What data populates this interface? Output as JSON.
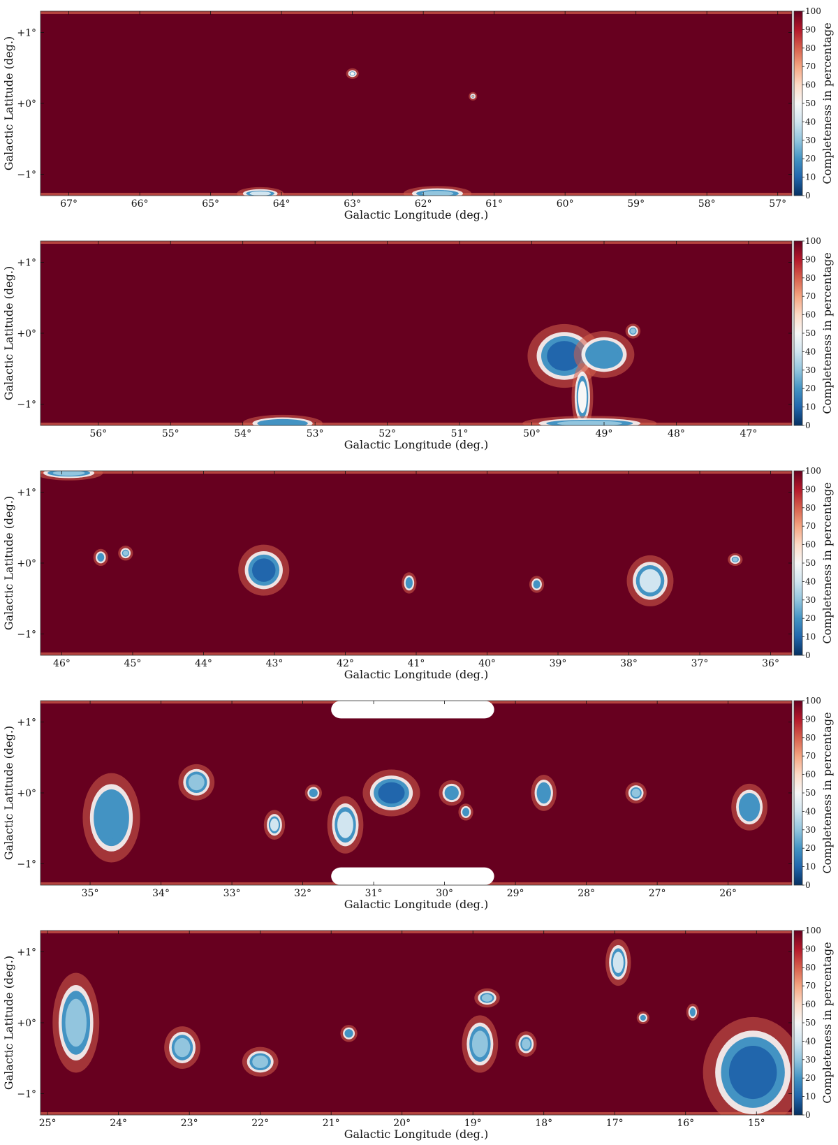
{
  "figure": {
    "colorbar": {
      "label": "Completeness in percentage",
      "ticks": [
        0,
        10,
        20,
        30,
        40,
        50,
        60,
        70,
        80,
        90,
        100
      ],
      "range": [
        0,
        100
      ],
      "colors": [
        "#053061",
        "#2166ac",
        "#4393c3",
        "#92c5de",
        "#d1e5f0",
        "#f7f7f7",
        "#fddbc7",
        "#f4a582",
        "#d6604d",
        "#b2182b",
        "#67001f"
      ]
    },
    "background_color": "#67001f"
  },
  "chart_data": [
    {
      "type": "heatmap",
      "xlabel": "Galactic Longitude (deg.)",
      "ylabel": "Galactic Latitude (deg.)",
      "xlim": [
        67.4,
        56.8
      ],
      "ylim": [
        -1.3,
        1.3
      ],
      "xticks": [
        67,
        66,
        65,
        64,
        63,
        62,
        61,
        60,
        59,
        58,
        57
      ],
      "xtick_labels": [
        "67°",
        "66°",
        "65°",
        "64°",
        "63°",
        "62°",
        "61°",
        "60°",
        "59°",
        "58°",
        "57°"
      ],
      "yticks": [
        1,
        0,
        -1
      ],
      "ytick_labels": [
        "+1°",
        "+0°",
        "−1°"
      ],
      "low_completeness_regions": [
        {
          "l": 63.0,
          "b": 0.42,
          "rl": 0.04,
          "rb": 0.03,
          "value": 50
        },
        {
          "l": 61.3,
          "b": 0.1,
          "rl": 0.02,
          "rb": 0.02,
          "value": 70
        },
        {
          "l": 61.8,
          "b": -1.27,
          "rl": 0.3,
          "rb": 0.05,
          "value": 25
        },
        {
          "l": 64.3,
          "b": -1.27,
          "rl": 0.2,
          "rb": 0.04,
          "value": 40
        }
      ]
    },
    {
      "type": "heatmap",
      "xlabel": "Galactic Longitude (deg.)",
      "ylabel": "Galactic Latitude (deg.)",
      "xlim": [
        56.8,
        46.4
      ],
      "ylim": [
        -1.3,
        1.3
      ],
      "xticks": [
        56,
        55,
        54,
        53,
        52,
        51,
        50,
        49,
        48,
        47
      ],
      "xtick_labels": [
        "56°",
        "55°",
        "54°",
        "53°",
        "52°",
        "51°",
        "50°",
        "49°",
        "48°",
        "47°"
      ],
      "yticks": [
        1,
        0,
        -1
      ],
      "ytick_labels": [
        "+1°",
        "+0°",
        "−1°"
      ],
      "low_completeness_regions": [
        {
          "l": 49.55,
          "b": -0.32,
          "rl": 0.32,
          "rb": 0.28,
          "value": 10
        },
        {
          "l": 49.0,
          "b": -0.3,
          "rl": 0.26,
          "rb": 0.2,
          "value": 15
        },
        {
          "l": 49.3,
          "b": -0.9,
          "rl": 0.08,
          "rb": 0.3,
          "value": 45
        },
        {
          "l": 48.6,
          "b": 0.03,
          "rl": 0.05,
          "rb": 0.05,
          "value": 30
        },
        {
          "l": 53.45,
          "b": -1.27,
          "rl": 0.35,
          "rb": 0.06,
          "value": 15
        },
        {
          "l": 49.2,
          "b": -1.27,
          "rl": 0.6,
          "rb": 0.05,
          "value": 30
        }
      ]
    },
    {
      "type": "heatmap",
      "xlabel": "Galactic Longitude (deg.)",
      "ylabel": "Galactic Latitude (deg.)",
      "xlim": [
        46.3,
        35.7
      ],
      "ylim": [
        -1.3,
        1.3
      ],
      "xticks": [
        46,
        45,
        44,
        43,
        42,
        41,
        40,
        39,
        38,
        37,
        36
      ],
      "xtick_labels": [
        "46°",
        "45°",
        "44°",
        "43°",
        "42°",
        "41°",
        "40°",
        "39°",
        "38°",
        "37°",
        "36°"
      ],
      "yticks": [
        1,
        0,
        -1
      ],
      "ytick_labels": [
        "+1°",
        "+0°",
        "−1°"
      ],
      "low_completeness_regions": [
        {
          "l": 43.15,
          "b": -0.1,
          "rl": 0.22,
          "rb": 0.22,
          "value": 10
        },
        {
          "l": 45.45,
          "b": 0.08,
          "rl": 0.05,
          "rb": 0.06,
          "value": 20
        },
        {
          "l": 45.1,
          "b": 0.14,
          "rl": 0.05,
          "rb": 0.05,
          "value": 25
        },
        {
          "l": 41.1,
          "b": -0.28,
          "rl": 0.05,
          "rb": 0.08,
          "value": 15
        },
        {
          "l": 39.3,
          "b": -0.3,
          "rl": 0.05,
          "rb": 0.06,
          "value": 15
        },
        {
          "l": 37.7,
          "b": -0.25,
          "rl": 0.2,
          "rb": 0.22,
          "value": 40
        },
        {
          "l": 36.5,
          "b": 0.05,
          "rl": 0.05,
          "rb": 0.04,
          "value": 30
        },
        {
          "l": 45.9,
          "b": 1.27,
          "rl": 0.3,
          "rb": 0.05,
          "value": 25
        }
      ]
    },
    {
      "type": "heatmap",
      "xlabel": "Galactic Longitude (deg.)",
      "ylabel": "Galactic Latitude (deg.)",
      "xlim": [
        35.7,
        25.1
      ],
      "ylim": [
        -1.3,
        1.3
      ],
      "xticks": [
        35,
        34,
        33,
        32,
        31,
        30,
        29,
        28,
        27,
        26
      ],
      "xtick_labels": [
        "35°",
        "34°",
        "33°",
        "32°",
        "31°",
        "30°",
        "29°",
        "28°",
        "27°",
        "26°"
      ],
      "yticks": [
        1,
        0,
        -1
      ],
      "ytick_labels": [
        "+1°",
        "+0°",
        "−1°"
      ],
      "low_completeness_regions": [
        {
          "l": 34.7,
          "b": -0.35,
          "rl": 0.25,
          "rb": 0.4,
          "value": 20
        },
        {
          "l": 33.5,
          "b": 0.15,
          "rl": 0.15,
          "rb": 0.15,
          "value": 25
        },
        {
          "l": 32.4,
          "b": -0.45,
          "rl": 0.08,
          "rb": 0.12,
          "value": 40
        },
        {
          "l": 31.85,
          "b": 0.0,
          "rl": 0.06,
          "rb": 0.06,
          "value": 20
        },
        {
          "l": 31.4,
          "b": -0.45,
          "rl": 0.15,
          "rb": 0.25,
          "value": 35
        },
        {
          "l": 30.75,
          "b": 0.0,
          "rl": 0.25,
          "rb": 0.2,
          "value": 10
        },
        {
          "l": 29.9,
          "b": 0.0,
          "rl": 0.1,
          "rb": 0.1,
          "value": 20
        },
        {
          "l": 29.7,
          "b": -0.27,
          "rl": 0.05,
          "rb": 0.06,
          "value": 20
        },
        {
          "l": 28.6,
          "b": 0.0,
          "rl": 0.1,
          "rb": 0.15,
          "value": 20
        },
        {
          "l": 27.3,
          "b": 0.0,
          "rl": 0.08,
          "rb": 0.08,
          "value": 25
        },
        {
          "l": 25.7,
          "b": -0.2,
          "rl": 0.15,
          "rb": 0.2,
          "value": 15
        }
      ],
      "masked_regions": [
        {
          "l_range": [
            31.6,
            29.3
          ],
          "b_range": [
            1.05,
            1.3
          ]
        },
        {
          "l_range": [
            31.6,
            29.3
          ],
          "b_range": [
            -1.3,
            -1.05
          ]
        }
      ]
    },
    {
      "type": "heatmap",
      "xlabel": "Galactic Longitude (deg.)",
      "ylabel": "Galactic Latitude (deg.)",
      "xlim": [
        25.1,
        14.5
      ],
      "ylim": [
        -1.3,
        1.3
      ],
      "xticks": [
        25,
        24,
        23,
        22,
        21,
        20,
        19,
        18,
        17,
        16,
        15
      ],
      "xtick_labels": [
        "25°",
        "24°",
        "23°",
        "22°",
        "21°",
        "20°",
        "19°",
        "18°",
        "17°",
        "16°",
        "15°"
      ],
      "yticks": [
        1,
        0,
        -1
      ],
      "ytick_labels": [
        "+1°",
        "+0°",
        "−1°"
      ],
      "low_completeness_regions": [
        {
          "l": 15.05,
          "b": -0.7,
          "rl": 0.45,
          "rb": 0.5,
          "value": 5
        },
        {
          "l": 23.1,
          "b": -0.35,
          "rl": 0.15,
          "rb": 0.18,
          "value": 25
        },
        {
          "l": 22.0,
          "b": -0.55,
          "rl": 0.15,
          "rb": 0.12,
          "value": 25
        },
        {
          "l": 20.75,
          "b": -0.15,
          "rl": 0.06,
          "rb": 0.06,
          "value": 20
        },
        {
          "l": 18.9,
          "b": -0.3,
          "rl": 0.15,
          "rb": 0.25,
          "value": 30
        },
        {
          "l": 18.8,
          "b": 0.35,
          "rl": 0.1,
          "rb": 0.07,
          "value": 30
        },
        {
          "l": 18.25,
          "b": -0.3,
          "rl": 0.08,
          "rb": 0.1,
          "value": 30
        },
        {
          "l": 16.95,
          "b": 0.85,
          "rl": 0.1,
          "rb": 0.2,
          "value": 40
        },
        {
          "l": 24.6,
          "b": 0.0,
          "rl": 0.2,
          "rb": 0.45,
          "value": 30
        },
        {
          "l": 15.9,
          "b": 0.15,
          "rl": 0.04,
          "rb": 0.06,
          "value": 20
        },
        {
          "l": 16.6,
          "b": 0.07,
          "rl": 0.04,
          "rb": 0.04,
          "value": 20
        }
      ]
    }
  ]
}
